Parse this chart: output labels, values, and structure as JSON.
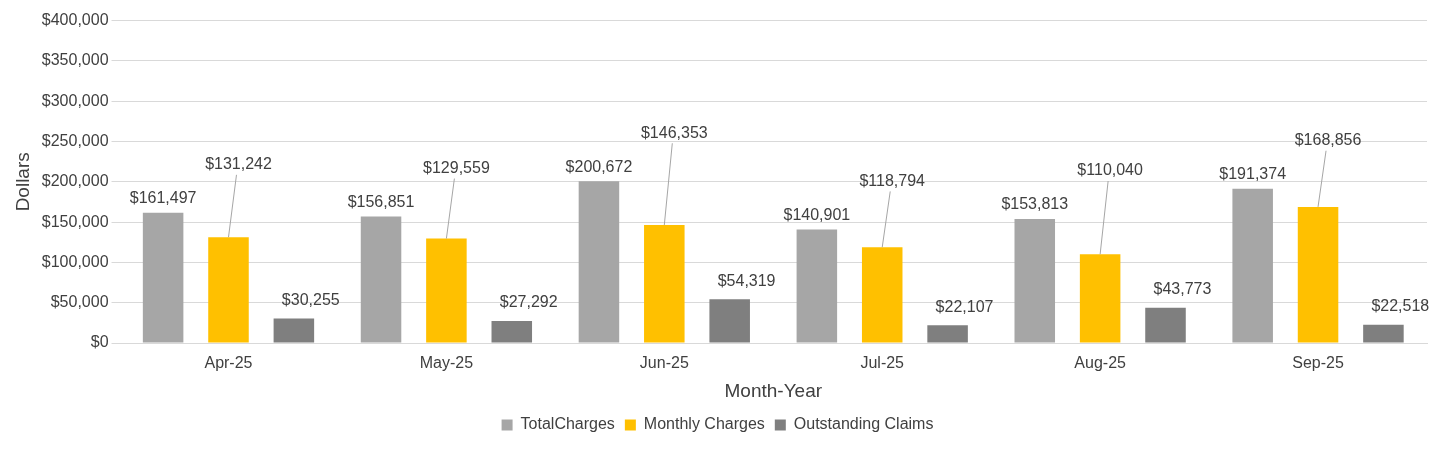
{
  "chart_data": {
    "type": "bar",
    "xlabel": "Month-Year",
    "ylabel": "Dollars",
    "categories": [
      "Apr-25",
      "May-25",
      "Jun-25",
      "Jul-25",
      "Aug-25",
      "Sep-25"
    ],
    "series": [
      {
        "name": "TotalCharges",
        "color": "#a6a6a6",
        "values": [
          161497,
          156851,
          200672,
          140901,
          153813,
          191374
        ],
        "value_labels": [
          "$161,497",
          "$156,851",
          "$200,672",
          "$140,901",
          "$153,813",
          "$191,374"
        ]
      },
      {
        "name": "Monthly Charges",
        "color": "#ffc000",
        "values": [
          131242,
          129559,
          146353,
          118794,
          110040,
          168856
        ],
        "value_labels": [
          "$131,242",
          "$129,559",
          "$146,353",
          "$118,794",
          "$110,040",
          "$168,856"
        ]
      },
      {
        "name": "Outstanding Claims",
        "color": "#7f7f7f",
        "values": [
          30255,
          27292,
          54319,
          22107,
          43773,
          22518
        ],
        "value_labels": [
          "$30,255",
          "$27,292",
          "$54,319",
          "$22,107",
          "$43,773",
          "$22,518"
        ]
      }
    ],
    "ylim": [
      0,
      400000
    ],
    "yticks": [
      {
        "value": 0,
        "label": "$0"
      },
      {
        "value": 50000,
        "label": "$50,000"
      },
      {
        "value": 100000,
        "label": "$100,000"
      },
      {
        "value": 150000,
        "label": "$150,000"
      },
      {
        "value": 200000,
        "label": "$200,000"
      },
      {
        "value": 250000,
        "label": "$250,000"
      },
      {
        "value": 300000,
        "label": "$300,000"
      },
      {
        "value": 350000,
        "label": "$350,000"
      },
      {
        "value": 400000,
        "label": "$400,000"
      }
    ],
    "grid": "y",
    "legend": "bottom"
  }
}
